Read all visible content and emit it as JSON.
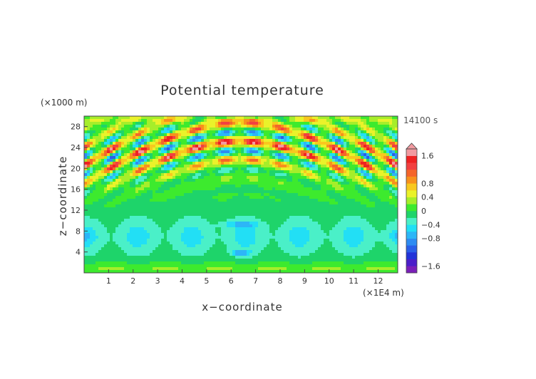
{
  "chart_data": {
    "type": "heatmap",
    "title": "Potential temperature",
    "xlabel": "x−coordinate",
    "ylabel": "z−coordinate",
    "x_unit": "(×1E4 m)",
    "y_unit": "(×1000 m)",
    "time_label": "14100 s",
    "xlim": [
      0,
      12.8
    ],
    "ylim": [
      0,
      30
    ],
    "x_ticks": [
      1,
      2,
      3,
      4,
      5,
      6,
      7,
      8,
      9,
      10,
      11,
      12
    ],
    "y_ticks": [
      4,
      8,
      12,
      16,
      20,
      24,
      28
    ],
    "colorbar": {
      "levels": [
        -1.8,
        -1.6,
        -1.4,
        -1.2,
        -1.0,
        -0.8,
        -0.6,
        -0.4,
        -0.2,
        0,
        0.2,
        0.4,
        0.6,
        0.8,
        1.0,
        1.2,
        1.4,
        1.6,
        1.8
      ],
      "colors": [
        "#7a1fb8",
        "#4b1ec9",
        "#2233d8",
        "#2a5fe8",
        "#2e8cf2",
        "#2db6f7",
        "#22dff5",
        "#4af0c8",
        "#1ed46a",
        "#3dea2e",
        "#a6ee2a",
        "#eaf22a",
        "#f8c81e",
        "#f8911c",
        "#f5652a",
        "#f24040",
        "#ee2222",
        "#f29aa0"
      ],
      "tick_labels": [
        "1.6",
        "0.8",
        "0.4",
        "0",
        "−0.4",
        "−0.8",
        "−1.6"
      ],
      "tick_values": [
        1.6,
        0.8,
        0.4,
        0,
        -0.4,
        -0.8,
        -1.6
      ]
    },
    "field_description": {
      "x_center": 6.4,
      "band_upper_z_range": [
        14,
        28
      ],
      "band_upper_max": 1.6,
      "lower_region_min": -1.2,
      "lower_region_z_range": [
        2,
        12
      ]
    }
  }
}
